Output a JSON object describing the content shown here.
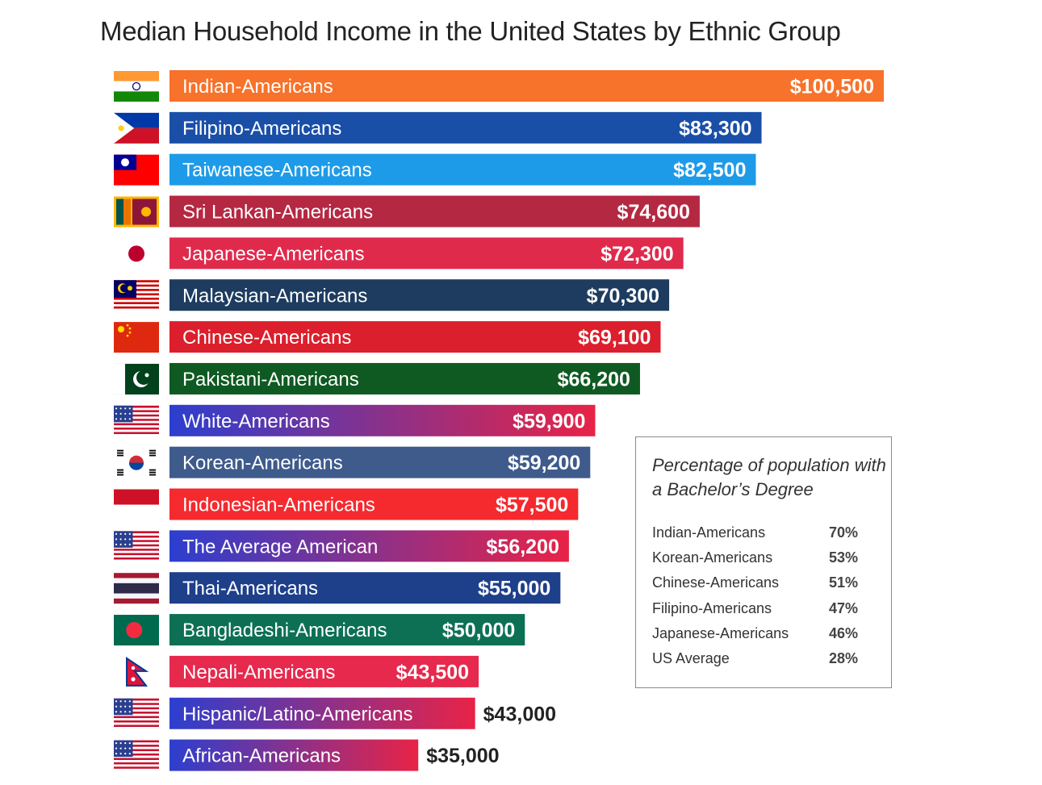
{
  "chart_data": {
    "type": "bar",
    "orientation": "horizontal",
    "title": "Median Household Income in the United States  by Ethnic Group",
    "xlabel": "",
    "ylabel": "",
    "xlim": [
      0,
      100500
    ],
    "categories": [
      "Indian-Americans",
      "Filipino-Americans",
      "Taiwanese-Americans",
      "Sri Lankan-Americans",
      "Japanese-Americans",
      "Malaysian-Americans",
      "Chinese-Americans",
      "Pakistani-Americans",
      "White-Americans",
      "Korean-Americans",
      "Indonesian-Americans",
      "The Average American",
      "Thai-Americans",
      "Bangladeshi-Americans",
      "Nepali-Americans",
      "Hispanic/Latino-Americans",
      "African-Americans"
    ],
    "values": [
      100500,
      83300,
      82500,
      74600,
      72300,
      70300,
      69100,
      66200,
      59900,
      59200,
      57500,
      56200,
      55000,
      50000,
      43500,
      43000,
      35000
    ],
    "value_labels": [
      "$100,500",
      "$83,300",
      "$82,500",
      "$74,600",
      "$72,300",
      "$70,300",
      "$69,100",
      "$66,200",
      "$59,900",
      "$59,200",
      "$57,500",
      "$56,200",
      "$55,000",
      "$50,000",
      "$43,500",
      "$43,000",
      "$35,000"
    ],
    "flags": [
      "india-flag-icon",
      "philippines-flag-icon",
      "taiwan-flag-icon",
      "sri-lanka-flag-icon",
      "japan-flag-icon",
      "malaysia-flag-icon",
      "china-flag-icon",
      "pakistan-flag-icon",
      "usa-flag-icon",
      "south-korea-flag-icon",
      "indonesia-flag-icon",
      "usa-flag-icon",
      "thailand-flag-icon",
      "bangladesh-flag-icon",
      "nepal-flag-icon",
      "usa-flag-icon",
      "usa-flag-icon"
    ],
    "bar_colors": [
      [
        "#f7722a"
      ],
      [
        "#1a4fa8"
      ],
      [
        "#1e9be8"
      ],
      [
        "#b52842"
      ],
      [
        "#e02a4c"
      ],
      [
        "#1d3c60"
      ],
      [
        "#dc1f2c"
      ],
      [
        "#0f5a22"
      ],
      [
        "#2c3fcf",
        "#e82346"
      ],
      [
        "#3e5b8c"
      ],
      [
        "#f42a2e"
      ],
      [
        "#2c3fcf",
        "#e82346"
      ],
      [
        "#1e3f8a"
      ],
      [
        "#0d7054"
      ],
      [
        "#e6294d"
      ],
      [
        "#2c3fcf",
        "#e82346"
      ],
      [
        "#2c3fcf",
        "#e82346"
      ]
    ],
    "grid": false,
    "legend": "none"
  },
  "education_box": {
    "title": "Percentage of population with a Bachelor’s Degree",
    "rows": [
      {
        "label": "Indian-Americans",
        "value": "70%"
      },
      {
        "label": "Korean-Americans",
        "value": "53%"
      },
      {
        "label": "Chinese-Americans",
        "value": "51%"
      },
      {
        "label": "Filipino-Americans",
        "value": "47%"
      },
      {
        "label": "Japanese-Americans",
        "value": "46%"
      },
      {
        "label": "US Average",
        "value": "28%"
      }
    ]
  }
}
